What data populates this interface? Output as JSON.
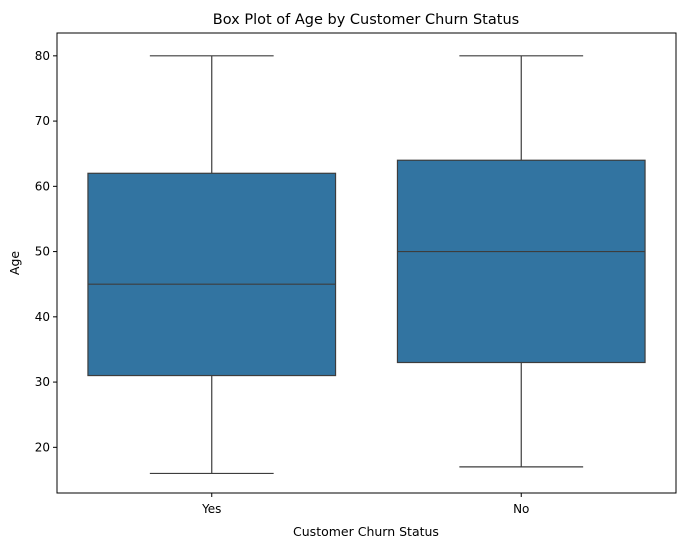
{
  "chart_data": {
    "type": "box",
    "title": "Box Plot of Age by Customer Churn Status",
    "xlabel": "Customer Churn Status",
    "ylabel": "Age",
    "categories": [
      "Yes",
      "No"
    ],
    "boxes": [
      {
        "category": "Yes",
        "whisker_low": 16,
        "q1": 31,
        "median": 45,
        "q3": 62,
        "whisker_high": 80
      },
      {
        "category": "No",
        "whisker_low": 17,
        "q1": 33,
        "median": 50,
        "q3": 64,
        "whisker_high": 80
      }
    ],
    "ylim": [
      13,
      83.5
    ],
    "yticks": [
      20,
      30,
      40,
      50,
      60,
      70,
      80
    ],
    "grid": false,
    "legend": "none",
    "box_color": "#3274a1",
    "line_color": "#3d3d3d"
  }
}
